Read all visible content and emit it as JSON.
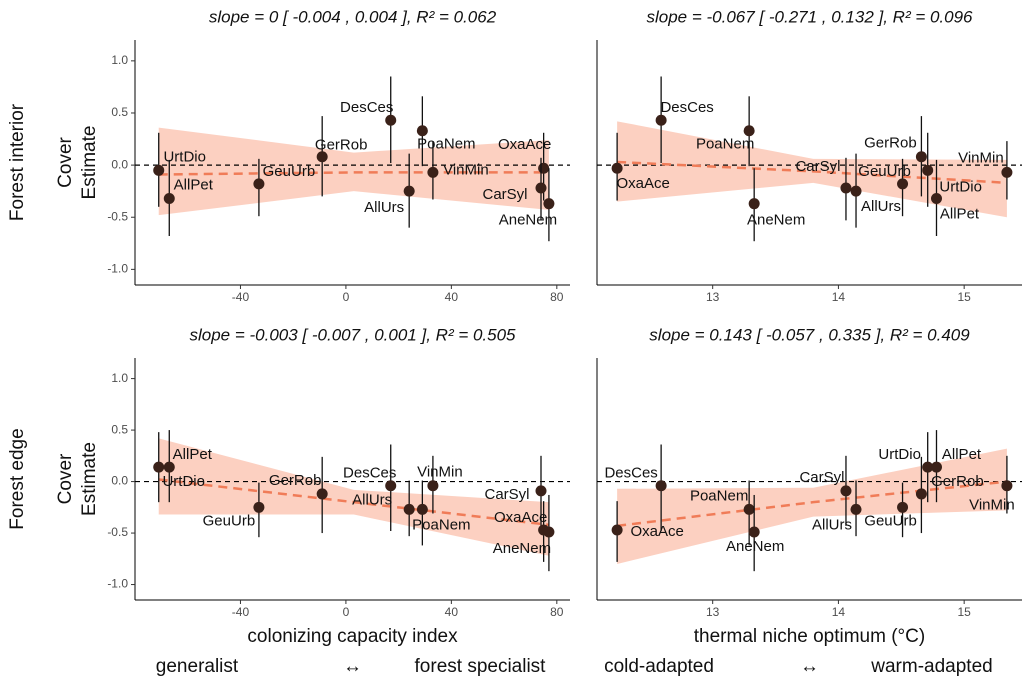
{
  "chart_data": [
    {
      "type": "scatter",
      "title": "slope = 0 [ -0.004 , 0.004 ], R² =  0.062",
      "row_label": "Forest interior",
      "ylabel": [
        "Cover",
        "Estimate"
      ],
      "labels": [
        "UrtDio",
        "AllPet",
        "GeuUrb",
        "GerRob",
        "DesCes",
        "AllUrs",
        "PoaNem",
        "VinMin",
        "OxaAce",
        "CarSyl",
        "AneNem"
      ],
      "x": [
        -71,
        -67,
        -33,
        -9,
        17,
        24,
        29,
        33,
        75,
        74,
        77
      ],
      "values": [
        -0.05,
        -0.32,
        -0.18,
        0.08,
        0.43,
        -0.25,
        0.33,
        -0.07,
        -0.03,
        -0.22,
        -0.37
      ],
      "lower": [
        -0.4,
        -0.68,
        -0.49,
        -0.3,
        0.02,
        -0.6,
        -0.01,
        -0.33,
        -0.34,
        -0.53,
        -0.73
      ],
      "upper": [
        0.31,
        0.05,
        0.06,
        0.47,
        0.85,
        0.11,
        0.66,
        0.23,
        0.31,
        0.07,
        -0.03
      ],
      "fit": {
        "x": [
          -71,
          3,
          77
        ],
        "y": [
          -0.09,
          -0.07,
          -0.07
        ],
        "lower": [
          -0.48,
          -0.25,
          -0.43
        ],
        "upper": [
          0.36,
          0.12,
          0.24
        ]
      },
      "xlim": [
        -80,
        85
      ],
      "ylim": [
        -1.15,
        1.2
      ],
      "xticks": [
        -40,
        0,
        40,
        80
      ],
      "yticks": [
        {
          "value": 1,
          "label": "1.0"
        },
        {
          "value": 0.5,
          "label": "0.5"
        },
        {
          "value": 0,
          "label": "0.0"
        },
        {
          "value": -0.5,
          "label": "-0.5"
        },
        {
          "value": -1,
          "label": "-1.0"
        }
      ],
      "hline": 0,
      "point_color": "#3a2119",
      "fit_color": "#f07c58",
      "ribbon_color": "#fbc8b6"
    },
    {
      "type": "scatter",
      "title": "slope = -0.067 [ -0.271 , 0.132 ], R² =  0.096",
      "labels": [
        "OxaAce",
        "DesCes",
        "PoaNem",
        "AneNem",
        "CarSyl",
        "AllUrs",
        "GeuUrb",
        "GerRob",
        "UrtDio",
        "AllPet",
        "VinMin"
      ],
      "x": [
        12.24,
        12.59,
        13.29,
        13.33,
        14.06,
        14.14,
        14.51,
        14.66,
        14.71,
        14.78,
        15.34
      ],
      "values": [
        -0.03,
        0.43,
        0.33,
        -0.37,
        -0.22,
        -0.25,
        -0.18,
        0.08,
        -0.05,
        -0.32,
        -0.07
      ],
      "lower": [
        -0.34,
        0.02,
        -0.01,
        -0.73,
        -0.53,
        -0.6,
        -0.49,
        -0.3,
        -0.4,
        -0.68,
        -0.33
      ],
      "upper": [
        0.31,
        0.85,
        0.66,
        -0.03,
        0.07,
        0.11,
        0.06,
        0.47,
        0.31,
        0.05,
        0.23
      ],
      "fit": {
        "x": [
          12.24,
          13.8,
          15.34
        ],
        "y": [
          0.03,
          -0.06,
          -0.17
        ],
        "lower": [
          -0.35,
          -0.17,
          -0.5
        ],
        "upper": [
          0.42,
          0.06,
          0.05
        ]
      },
      "xlim": [
        12.08,
        15.46
      ],
      "ylim": [
        -1.15,
        1.2
      ],
      "xticks": [
        13,
        14,
        15
      ],
      "hline": 0,
      "point_color": "#3a2119",
      "fit_color": "#f07c58",
      "ribbon_color": "#fbc8b6"
    },
    {
      "type": "scatter",
      "title": "slope = -0.003 [ -0.007 , 0.001 ], R² =  0.505",
      "row_label": "Forest edge",
      "ylabel": [
        "Cover",
        "Estimate"
      ],
      "xlabel": "colonizing capacity index",
      "annotations": [
        "generalist",
        "↔",
        "forest specialist"
      ],
      "labels": [
        "UrtDio",
        "AllPet",
        "GeuUrb",
        "GerRob",
        "DesCes",
        "AllUrs",
        "PoaNem",
        "VinMin",
        "CarSyl",
        "OxaAce",
        "AneNem"
      ],
      "x": [
        -71,
        -67,
        -33,
        -9,
        17,
        24,
        29,
        33,
        74,
        75,
        77
      ],
      "values": [
        0.14,
        0.14,
        -0.25,
        -0.12,
        -0.04,
        -0.27,
        -0.27,
        -0.04,
        -0.09,
        -0.47,
        -0.49
      ],
      "lower": [
        -0.2,
        -0.2,
        -0.54,
        -0.5,
        -0.48,
        -0.53,
        -0.62,
        -0.31,
        -0.43,
        -0.78,
        -0.87
      ],
      "upper": [
        0.48,
        0.5,
        -0.01,
        0.24,
        0.36,
        0.01,
        0.01,
        0.25,
        0.25,
        -0.19,
        -0.13
      ],
      "fit": {
        "x": [
          -71,
          3,
          77
        ],
        "y": [
          0.02,
          -0.2,
          -0.42
        ],
        "lower": [
          -0.32,
          -0.32,
          -0.72
        ],
        "upper": [
          0.42,
          -0.08,
          -0.2
        ]
      },
      "xlim": [
        -80,
        85
      ],
      "ylim": [
        -1.15,
        1.2
      ],
      "xticks": [
        -40,
        0,
        40,
        80
      ],
      "yticks": [
        {
          "value": 1,
          "label": "1.0"
        },
        {
          "value": 0.5,
          "label": "0.5"
        },
        {
          "value": 0,
          "label": "0.0"
        },
        {
          "value": -0.5,
          "label": "-0.5"
        },
        {
          "value": -1,
          "label": "-1.0"
        }
      ],
      "hline": 0,
      "point_color": "#3a2119",
      "fit_color": "#f07c58",
      "ribbon_color": "#fbc8b6"
    },
    {
      "type": "scatter",
      "title": "slope = 0.143 [ -0.057 , 0.335 ], R² =  0.409",
      "xlabel": "thermal niche optimum (°C)",
      "annotations": [
        "cold-adapted",
        "↔",
        "warm-adapted"
      ],
      "labels": [
        "OxaAce",
        "DesCes",
        "PoaNem",
        "AneNem",
        "CarSyl",
        "AllUrs",
        "GeuUrb",
        "GerRob",
        "UrtDio",
        "AllPet",
        "VinMin"
      ],
      "x": [
        12.24,
        12.59,
        13.29,
        13.33,
        14.06,
        14.14,
        14.51,
        14.66,
        14.71,
        14.78,
        15.34
      ],
      "values": [
        -0.47,
        -0.04,
        -0.27,
        -0.49,
        -0.09,
        -0.27,
        -0.25,
        -0.12,
        0.14,
        0.14,
        -0.04
      ],
      "lower": [
        -0.78,
        -0.48,
        -0.62,
        -0.87,
        -0.43,
        -0.53,
        -0.54,
        -0.5,
        -0.2,
        -0.2,
        -0.31
      ],
      "upper": [
        -0.19,
        0.36,
        0.01,
        -0.13,
        0.25,
        0.01,
        -0.01,
        0.24,
        0.48,
        0.5,
        0.25
      ],
      "fit": {
        "x": [
          12.24,
          13.8,
          15.34
        ],
        "y": [
          -0.43,
          -0.2,
          0.0
        ],
        "lower": [
          -0.8,
          -0.34,
          -0.28
        ],
        "upper": [
          -0.07,
          -0.06,
          0.32
        ]
      },
      "xlim": [
        12.08,
        15.46
      ],
      "ylim": [
        -1.15,
        1.2
      ],
      "xticks": [
        13,
        14,
        15
      ],
      "hline": 0,
      "point_color": "#3a2119",
      "fit_color": "#f07c58",
      "ribbon_color": "#fbc8b6"
    }
  ]
}
